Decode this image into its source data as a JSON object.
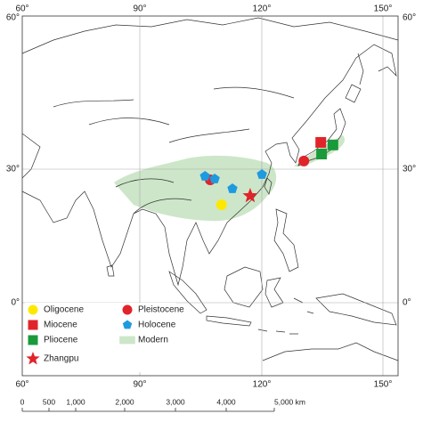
{
  "map": {
    "lon_labels": [
      "60°",
      "90°",
      "120°",
      "150°"
    ],
    "lat_labels": [
      "60°",
      "30°",
      "0°"
    ],
    "legend": [
      {
        "label": "Oligocene",
        "color": "#ffe800",
        "shape": "circle",
        "sites": [
          [
            109.4,
            22.0
          ]
        ]
      },
      {
        "label": "Pleistocene",
        "color": "#e0242a",
        "shape": "circle",
        "sites": [
          [
            106.6,
            27.6
          ],
          [
            129.8,
            31.6
          ]
        ]
      },
      {
        "label": "Miocene",
        "color": "#e0242a",
        "shape": "square",
        "sites": [
          [
            134.0,
            35.3
          ]
        ]
      },
      {
        "label": "Holocene",
        "color": "#1e9ae0",
        "shape": "pentagon",
        "sites": [
          [
            105.3,
            28.4
          ],
          [
            107.7,
            27.8
          ],
          [
            112.1,
            25.6
          ],
          [
            119.4,
            28.8
          ]
        ]
      },
      {
        "label": "Pliocene",
        "color": "#1a9a3a",
        "shape": "square",
        "sites": [
          [
            134.2,
            33.0
          ],
          [
            137.0,
            34.8
          ]
        ]
      },
      {
        "label": "Modern",
        "color": "#cde6c9",
        "shape": "band",
        "sites": []
      },
      {
        "label": "Zhangpu",
        "color": "#e0242a",
        "shape": "star",
        "sites": [
          [
            116.5,
            24.0
          ]
        ]
      }
    ],
    "scale_labels": [
      "0",
      "500",
      "1,000",
      "2,000",
      "3,000",
      "4,000",
      "5,000 km"
    ]
  }
}
